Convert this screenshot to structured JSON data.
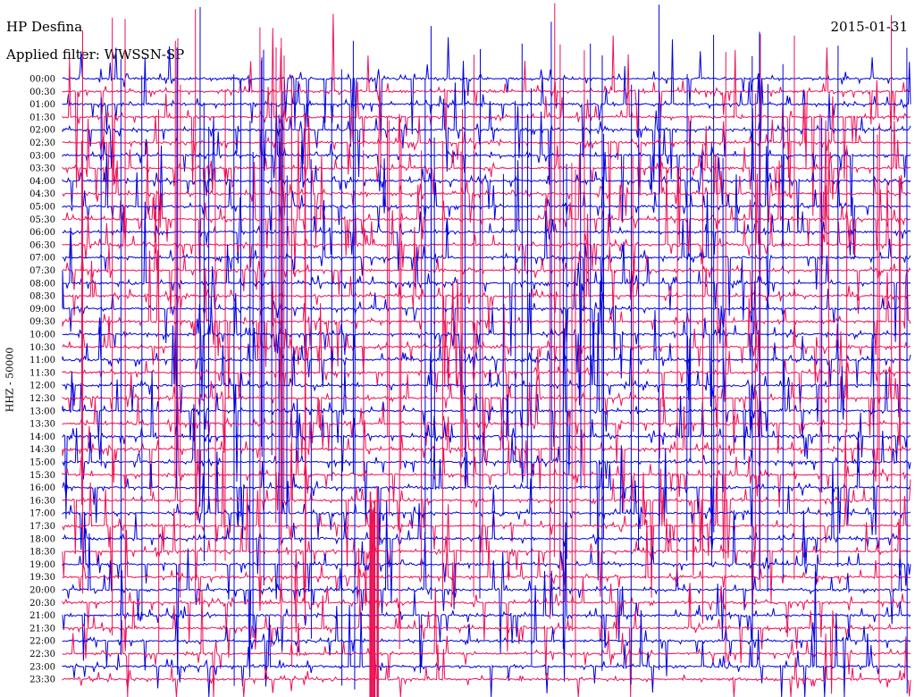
{
  "header": {
    "station": "HP Desfina",
    "date": "2015-01-31",
    "filter": "Applied filter: WWSSN-SP",
    "channel": "HHZ - 50000"
  },
  "colors": {
    "trace_a": "#0000dd",
    "trace_b": "#ee1155",
    "text": "#000000",
    "background": "#ffffff"
  },
  "chart_data": {
    "type": "line",
    "title": "HP Desfina",
    "subtitle": "Applied filter: WWSSN-SP",
    "ylabel": "HHZ - 50000",
    "xlabel": "",
    "grid": false,
    "legend": "none",
    "row_colors_alternate": [
      "#0000dd",
      "#ee1155"
    ],
    "y_tick_labels": [
      "00:00",
      "00:30",
      "01:00",
      "01:30",
      "02:00",
      "02:30",
      "03:00",
      "03:30",
      "04:00",
      "04:30",
      "05:00",
      "05:30",
      "06:00",
      "06:30",
      "07:00",
      "07:30",
      "08:00",
      "08:30",
      "09:00",
      "09:30",
      "10:00",
      "10:30",
      "11:00",
      "11:30",
      "12:00",
      "12:30",
      "13:00",
      "13:30",
      "14:00",
      "14:30",
      "15:00",
      "15:30",
      "16:00",
      "16:30",
      "17:00",
      "17:30",
      "18:00",
      "18:30",
      "19:00",
      "19:30",
      "20:00",
      "20:30",
      "21:00",
      "21:30",
      "22:00",
      "22:30",
      "23:00",
      "23:30"
    ]
  }
}
